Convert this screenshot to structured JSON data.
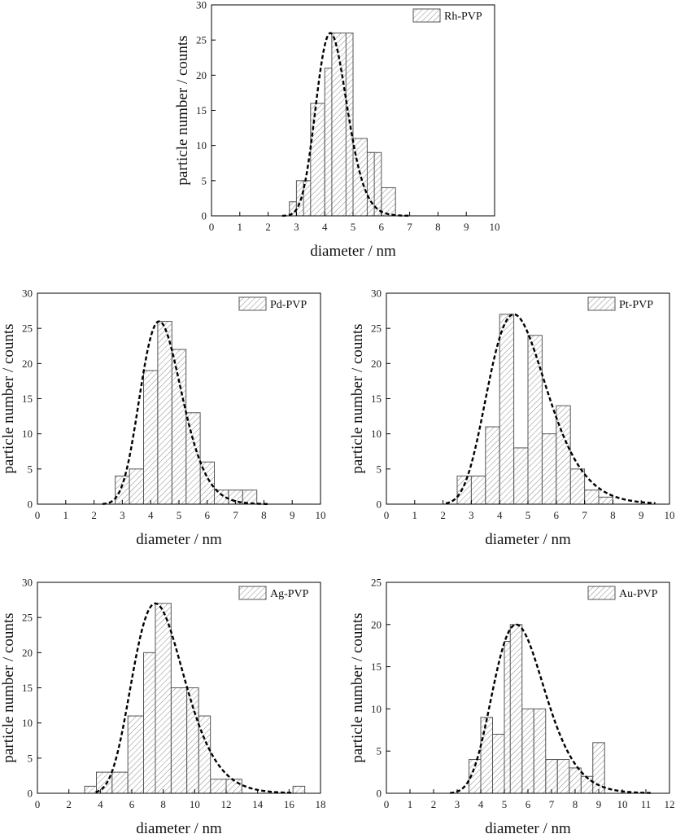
{
  "figure": {
    "background": "#ffffff",
    "bar_edge_color": "#555555",
    "hatch_color": "#7a7a7a",
    "fit_color": "#000000"
  },
  "chart_data": [
    {
      "type": "bar",
      "legend": "Rh-PVP",
      "legend_position": "top-right",
      "xlabel": "diameter / nm",
      "ylabel": "particle number / counts",
      "xlim": [
        0,
        10
      ],
      "ylim": [
        0,
        30
      ],
      "xticks": [
        0,
        1,
        2,
        3,
        4,
        5,
        6,
        7,
        8,
        9,
        10
      ],
      "yticks": [
        0,
        5,
        10,
        15,
        20,
        25,
        30
      ],
      "bin_width": 0.5,
      "bins_start": [
        2.75,
        3.0,
        3.5,
        4.0,
        4.5,
        5.0,
        5.5,
        6.0
      ],
      "bin_widths": [
        0.25,
        0.5,
        0.5,
        0.5,
        0.5,
        0.5,
        0.5,
        0.5
      ],
      "counts": [
        2,
        5,
        16,
        21,
        26,
        11,
        9,
        4
      ],
      "extra_bars": [
        {
          "x0": 3.25,
          "x1": 3.75,
          "count": 5
        },
        {
          "x0": 4.25,
          "x1": 4.75,
          "count": 26
        },
        {
          "x0": 5.25,
          "x1": 5.75,
          "count": 9
        },
        {
          "x0": 5.75,
          "x1": 6.25,
          "count": 1
        }
      ],
      "fit": {
        "type": "lognormal",
        "peak_x": 4.2,
        "peak_y": 26,
        "x_range": [
          2.5,
          7.0
        ],
        "sigma": 0.13
      }
    },
    {
      "type": "bar",
      "legend": "Pd-PVP",
      "legend_position": "top-right",
      "xlabel": "diameter / nm",
      "ylabel": "particle number / counts",
      "xlim": [
        0,
        10
      ],
      "ylim": [
        0,
        30
      ],
      "xticks": [
        0,
        1,
        2,
        3,
        4,
        5,
        6,
        7,
        8,
        9,
        10
      ],
      "yticks": [
        0,
        5,
        10,
        15,
        20,
        25,
        30
      ],
      "bins_start": [
        2.75,
        3.25,
        3.75,
        4.25,
        4.75,
        5.25,
        5.75,
        6.25,
        6.75,
        7.25
      ],
      "bin_widths": [
        0.5,
        0.5,
        0.5,
        0.5,
        0.5,
        0.5,
        0.5,
        0.5,
        0.5,
        0.5
      ],
      "counts": [
        4,
        5,
        19,
        26,
        22,
        13,
        6,
        2,
        2,
        2
      ],
      "fit": {
        "type": "lognormal",
        "peak_x": 4.3,
        "peak_y": 26,
        "x_range": [
          2.3,
          8.2
        ],
        "sigma": 0.17
      }
    },
    {
      "type": "bar",
      "legend": "Pt-PVP",
      "legend_position": "top-right",
      "xlabel": "diameter / nm",
      "ylabel": "particle number / counts",
      "xlim": [
        0,
        10
      ],
      "ylim": [
        0,
        30
      ],
      "xticks": [
        0,
        1,
        2,
        3,
        4,
        5,
        6,
        7,
        8,
        9,
        10
      ],
      "yticks": [
        0,
        5,
        10,
        15,
        20,
        25,
        30
      ],
      "bins_start": [
        2.5,
        3.0,
        3.5,
        4.0,
        4.5,
        5.0,
        5.5,
        6.0,
        6.5,
        7.0,
        7.5
      ],
      "bin_widths": [
        0.5,
        0.5,
        0.5,
        0.5,
        0.5,
        0.5,
        0.5,
        0.5,
        0.5,
        0.5,
        0.5
      ],
      "counts": [
        4,
        4,
        11,
        27,
        8,
        24,
        10,
        14,
        5,
        2,
        1
      ],
      "fit": {
        "type": "lognormal",
        "peak_x": 4.5,
        "peak_y": 27,
        "x_range": [
          2.1,
          9.5
        ],
        "sigma": 0.23
      }
    },
    {
      "type": "bar",
      "legend": "Ag-PVP",
      "legend_position": "top-right",
      "xlabel": "diameter / nm",
      "ylabel": "particle number / counts",
      "xlim": [
        0,
        18
      ],
      "ylim": [
        0,
        30
      ],
      "xticks": [
        0,
        2,
        4,
        6,
        8,
        10,
        12,
        14,
        16,
        18
      ],
      "yticks": [
        0,
        5,
        10,
        15,
        20,
        25,
        30
      ],
      "bins_start": [
        3.0,
        3.75,
        4.75,
        5.75,
        6.75,
        7.5,
        8.5,
        9.5,
        10.25,
        11.0,
        12.0,
        16.25
      ],
      "bin_widths": [
        0.75,
        1.0,
        1.0,
        1.0,
        0.75,
        1.0,
        1.0,
        0.75,
        0.75,
        1.0,
        1.0,
        0.75
      ],
      "counts": [
        1,
        3,
        3,
        11,
        20,
        27,
        15,
        15,
        11,
        2,
        2,
        1
      ],
      "fit": {
        "type": "lognormal",
        "peak_x": 7.5,
        "peak_y": 27,
        "x_range": [
          3.7,
          16.2
        ],
        "sigma": 0.22
      }
    },
    {
      "type": "bar",
      "legend": "Au-PVP",
      "legend_position": "top-right",
      "xlabel": "diameter / nm",
      "ylabel": "particle number / counts",
      "xlim": [
        0,
        12
      ],
      "ylim": [
        0,
        25
      ],
      "xticks": [
        0,
        1,
        2,
        3,
        4,
        5,
        6,
        7,
        8,
        9,
        10,
        11,
        12
      ],
      "yticks": [
        0,
        5,
        10,
        15,
        20,
        25
      ],
      "bins_start": [
        3.5,
        4.0,
        4.5,
        5.0,
        5.25,
        5.75,
        6.25,
        6.75,
        7.25,
        7.75,
        8.25,
        8.75
      ],
      "bin_widths": [
        0.5,
        0.5,
        0.5,
        0.5,
        0.5,
        0.5,
        0.5,
        0.5,
        0.5,
        0.5,
        0.5,
        0.5
      ],
      "counts": [
        4,
        9,
        7,
        18,
        20,
        10,
        10,
        4,
        4,
        3,
        2,
        6
      ],
      "fit": {
        "type": "lognormal",
        "peak_x": 5.5,
        "peak_y": 20,
        "x_range": [
          2.7,
          11.2
        ],
        "sigma": 0.2
      }
    }
  ]
}
